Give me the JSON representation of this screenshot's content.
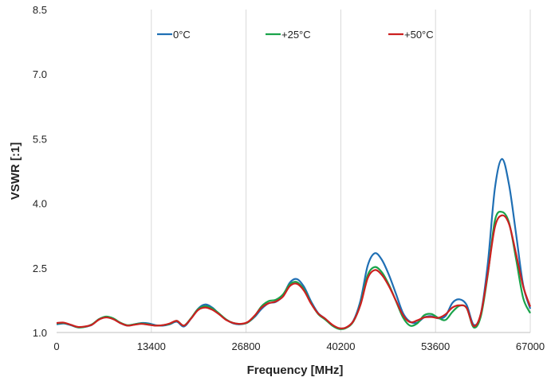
{
  "chart_data": {
    "type": "line",
    "title": "",
    "xlabel": "Frequency [MHz]",
    "ylabel": "VSWR [:1]",
    "xlim": [
      0,
      67000
    ],
    "ylim": [
      1.0,
      8.5
    ],
    "xticks": [
      0,
      13400,
      26800,
      40200,
      53600,
      67000
    ],
    "xtick_labels": [
      "0",
      "13400",
      "26800",
      "40200",
      "53600",
      "67000"
    ],
    "yticks": [
      1.0,
      2.5,
      4.0,
      5.5,
      7.0,
      8.5
    ],
    "ytick_labels": [
      "1.0",
      "2.5",
      "4.0",
      "5.5",
      "7.0",
      "8.5"
    ],
    "grid": "vertical",
    "legend_position": "top",
    "series": [
      {
        "name": "0°C",
        "color": "#1f6fb4",
        "x": [
          0,
          1000,
          2000,
          3000,
          4000,
          5000,
          6000,
          7000,
          8000,
          9000,
          10000,
          11000,
          12000,
          13000,
          14000,
          15000,
          16000,
          17000,
          18000,
          19000,
          20000,
          21000,
          22000,
          23000,
          24000,
          25000,
          26000,
          27000,
          28000,
          29000,
          30000,
          31000,
          32000,
          33000,
          34000,
          35000,
          36000,
          37000,
          38000,
          39000,
          40000,
          41000,
          42000,
          43000,
          44000,
          45000,
          46000,
          47000,
          48000,
          49000,
          50000,
          51000,
          52000,
          53000,
          54000,
          55000,
          56000,
          57000,
          58000,
          59000,
          60000,
          61000,
          62000,
          63000,
          64000,
          65000,
          66000,
          67000
        ],
        "values": [
          1.19,
          1.21,
          1.17,
          1.12,
          1.13,
          1.18,
          1.31,
          1.36,
          1.32,
          1.22,
          1.16,
          1.19,
          1.22,
          1.21,
          1.17,
          1.16,
          1.19,
          1.25,
          1.14,
          1.32,
          1.55,
          1.65,
          1.58,
          1.43,
          1.3,
          1.21,
          1.19,
          1.23,
          1.36,
          1.55,
          1.68,
          1.71,
          1.85,
          2.16,
          2.24,
          2.06,
          1.72,
          1.45,
          1.32,
          1.16,
          1.09,
          1.12,
          1.28,
          1.75,
          2.55,
          2.84,
          2.69,
          2.34,
          1.9,
          1.45,
          1.25,
          1.23,
          1.35,
          1.38,
          1.33,
          1.38,
          1.69,
          1.77,
          1.64,
          1.18,
          1.43,
          2.61,
          4.35,
          5.03,
          4.43,
          3.28,
          2.1,
          1.55
        ]
      },
      {
        "name": "+25°C",
        "color": "#1aa34a",
        "x": [
          0,
          1000,
          2000,
          3000,
          4000,
          5000,
          6000,
          7000,
          8000,
          9000,
          10000,
          11000,
          12000,
          13000,
          14000,
          15000,
          16000,
          17000,
          18000,
          19000,
          20000,
          21000,
          22000,
          23000,
          24000,
          25000,
          26000,
          27000,
          28000,
          29000,
          30000,
          31000,
          32000,
          33000,
          34000,
          35000,
          36000,
          37000,
          38000,
          39000,
          40000,
          41000,
          42000,
          43000,
          44000,
          45000,
          46000,
          47000,
          48000,
          49000,
          50000,
          51000,
          52000,
          53000,
          54000,
          55000,
          56000,
          57000,
          58000,
          59000,
          60000,
          61000,
          62000,
          63000,
          64000,
          65000,
          66000,
          67000
        ],
        "values": [
          1.21,
          1.22,
          1.18,
          1.12,
          1.13,
          1.19,
          1.31,
          1.37,
          1.33,
          1.23,
          1.17,
          1.19,
          1.21,
          1.19,
          1.16,
          1.17,
          1.2,
          1.27,
          1.16,
          1.33,
          1.54,
          1.61,
          1.56,
          1.44,
          1.3,
          1.22,
          1.2,
          1.23,
          1.38,
          1.61,
          1.73,
          1.76,
          1.88,
          2.12,
          2.17,
          2.0,
          1.68,
          1.43,
          1.3,
          1.16,
          1.08,
          1.11,
          1.26,
          1.67,
          2.33,
          2.52,
          2.4,
          2.11,
          1.73,
          1.35,
          1.16,
          1.21,
          1.4,
          1.43,
          1.34,
          1.29,
          1.48,
          1.62,
          1.57,
          1.12,
          1.37,
          2.35,
          3.6,
          3.8,
          3.55,
          2.7,
          1.8,
          1.45
        ]
      },
      {
        "name": "+50°C",
        "color": "#cc2020",
        "x": [
          0,
          1000,
          2000,
          3000,
          4000,
          5000,
          6000,
          7000,
          8000,
          9000,
          10000,
          11000,
          12000,
          13000,
          14000,
          15000,
          16000,
          17000,
          18000,
          19000,
          20000,
          21000,
          22000,
          23000,
          24000,
          25000,
          26000,
          27000,
          28000,
          29000,
          30000,
          31000,
          32000,
          33000,
          34000,
          35000,
          36000,
          37000,
          38000,
          39000,
          40000,
          41000,
          42000,
          43000,
          44000,
          45000,
          46000,
          47000,
          48000,
          49000,
          50000,
          51000,
          52000,
          53000,
          54000,
          55000,
          56000,
          57000,
          58000,
          59000,
          60000,
          61000,
          62000,
          63000,
          64000,
          65000,
          66000,
          67000
        ],
        "values": [
          1.22,
          1.23,
          1.18,
          1.13,
          1.14,
          1.18,
          1.3,
          1.35,
          1.31,
          1.22,
          1.16,
          1.18,
          1.2,
          1.18,
          1.16,
          1.17,
          1.21,
          1.27,
          1.16,
          1.32,
          1.52,
          1.58,
          1.53,
          1.42,
          1.29,
          1.22,
          1.2,
          1.24,
          1.39,
          1.58,
          1.68,
          1.72,
          1.83,
          2.08,
          2.13,
          1.97,
          1.67,
          1.44,
          1.32,
          1.18,
          1.1,
          1.12,
          1.27,
          1.65,
          2.26,
          2.45,
          2.34,
          2.08,
          1.74,
          1.4,
          1.24,
          1.28,
          1.35,
          1.36,
          1.34,
          1.42,
          1.58,
          1.63,
          1.57,
          1.15,
          1.43,
          2.38,
          3.45,
          3.72,
          3.52,
          2.82,
          2.07,
          1.6
        ]
      }
    ]
  }
}
